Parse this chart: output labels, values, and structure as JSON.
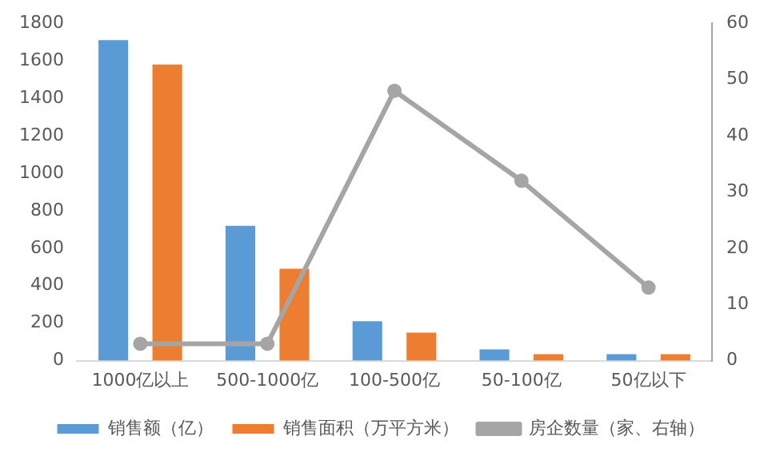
{
  "chart_data": {
    "type": "bar",
    "categories": [
      "1000亿以上",
      "500-1000亿",
      "100-500亿",
      "50-100亿",
      "50亿以下"
    ],
    "series": [
      {
        "name": "销售额（亿）",
        "color": "#5b9bd5",
        "values": [
          1710,
          720,
          210,
          60,
          35
        ]
      },
      {
        "name": "销售面积（万平方米）",
        "color": "#ed7d31",
        "values": [
          1580,
          490,
          150,
          35,
          35
        ]
      },
      {
        "name": "房企数量（家、右轴）",
        "color": "#a5a5a5",
        "type": "line",
        "axis": "y2",
        "marker": "circle",
        "values": [
          3,
          3,
          48,
          32,
          13
        ]
      }
    ],
    "ylim": [
      0,
      1800
    ],
    "yticks": [
      0,
      200,
      400,
      600,
      800,
      1000,
      1200,
      1400,
      1600,
      1800
    ],
    "y2lim": [
      0,
      60
    ],
    "y2ticks": [
      0,
      10,
      20,
      30,
      40,
      50,
      60
    ],
    "grid": false,
    "legend": "bottom"
  }
}
